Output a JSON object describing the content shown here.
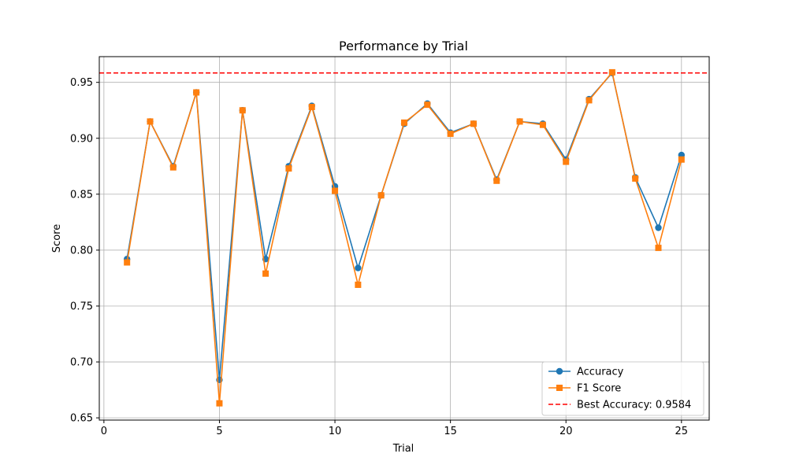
{
  "chart_data": {
    "type": "line",
    "title": "Performance by Trial",
    "xlabel": "Trial",
    "ylabel": "Score",
    "x": [
      1,
      2,
      3,
      4,
      5,
      6,
      7,
      8,
      9,
      10,
      11,
      12,
      13,
      14,
      15,
      16,
      17,
      18,
      19,
      20,
      21,
      22,
      23,
      24,
      25
    ],
    "xlim": [
      -0.2,
      26.2
    ],
    "ylim": [
      0.648,
      0.973
    ],
    "xticks": [
      0,
      5,
      10,
      15,
      20,
      25
    ],
    "yticks": [
      0.65,
      0.7,
      0.75,
      0.8,
      0.85,
      0.9,
      0.95
    ],
    "grid": true,
    "legend_position": "lower-right",
    "series": [
      {
        "name": "Accuracy",
        "color": "#1f77b4",
        "marker": "circle",
        "values": [
          0.792,
          0.915,
          0.875,
          0.941,
          0.684,
          0.925,
          0.792,
          0.875,
          0.929,
          0.857,
          0.784,
          0.849,
          0.913,
          0.931,
          0.905,
          0.913,
          0.863,
          0.915,
          0.913,
          0.881,
          0.935,
          0.9584,
          0.865,
          0.82,
          0.885
        ]
      },
      {
        "name": "F1 Score",
        "color": "#ff7f0e",
        "marker": "square",
        "values": [
          0.789,
          0.915,
          0.874,
          0.941,
          0.663,
          0.925,
          0.779,
          0.873,
          0.928,
          0.853,
          0.769,
          0.849,
          0.914,
          0.93,
          0.904,
          0.913,
          0.862,
          0.915,
          0.912,
          0.879,
          0.934,
          0.959,
          0.864,
          0.802,
          0.881
        ]
      }
    ],
    "reference_line": {
      "name": "Best Accuracy: 0.9584",
      "value": 0.9584,
      "color": "#ff0000",
      "style": "dashed"
    }
  }
}
